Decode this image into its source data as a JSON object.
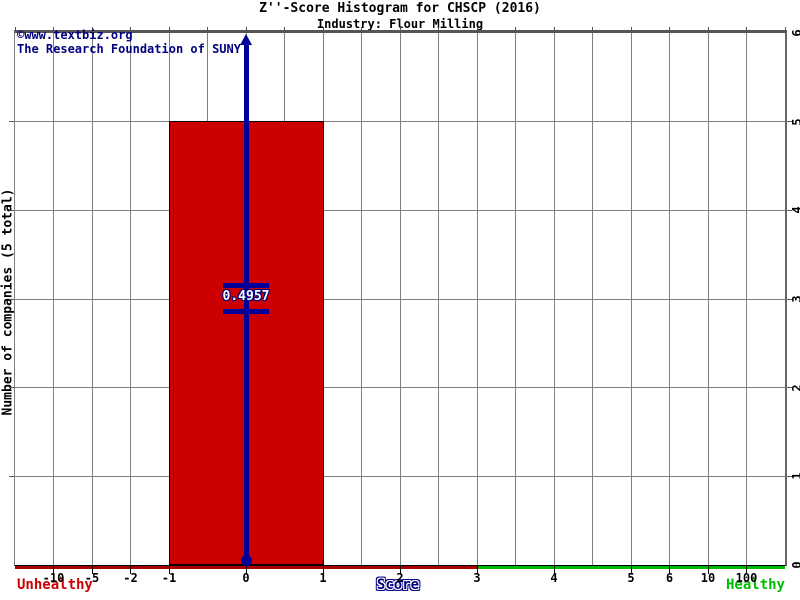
{
  "header": {
    "title": "Z''-Score Histogram for CHSCP (2016)",
    "subtitle": "Industry: Flour Milling"
  },
  "watermark": {
    "line1": "©www.textbiz.org",
    "line2": "The Research Foundation of SUNY"
  },
  "axis_labels": {
    "y": "Number of companies (5 total)",
    "x": "Score",
    "left": "Unhealthy",
    "right": "Healthy"
  },
  "colors": {
    "bar": "#cc0000",
    "bar_border": "#000000",
    "marker": "#000099",
    "navy_text": "#000080",
    "grid": "#808080",
    "tick": "#555555",
    "axis_red": "#aa0000",
    "axis_green": "#00bb00",
    "unhealthy_text": "#cc0000",
    "healthy_text": "#00bb00"
  },
  "chart_data": {
    "type": "bar",
    "title": "Z''-Score Histogram for CHSCP (2016)",
    "subtitle": "Industry: Flour Milling",
    "x_axis": {
      "label": "Score",
      "grid_divisions": 20,
      "nonlinear": true,
      "ticks": [
        {
          "label": "-10",
          "i": 1
        },
        {
          "label": "-5",
          "i": 2
        },
        {
          "label": "-2",
          "i": 3
        },
        {
          "label": "-1",
          "i": 4
        },
        {
          "label": "0",
          "i": 6
        },
        {
          "label": "1",
          "i": 8
        },
        {
          "label": "2",
          "i": 10
        },
        {
          "label": "3",
          "i": 12
        },
        {
          "label": "4",
          "i": 14
        },
        {
          "label": "5",
          "i": 16
        },
        {
          "label": "6",
          "i": 17
        },
        {
          "label": "10",
          "i": 18
        },
        {
          "label": "100",
          "i": 19
        }
      ],
      "unhealthy_until_i": 12,
      "unhealthy_until_score": 3
    },
    "y_axis": {
      "label": "Number of companies (5 total)",
      "max": 6,
      "ticks": [
        {
          "label": "0",
          "v": 0
        },
        {
          "label": "1",
          "v": 1
        },
        {
          "label": "2",
          "v": 2
        },
        {
          "label": "3",
          "v": 3
        },
        {
          "label": "4",
          "v": 4
        },
        {
          "label": "5",
          "v": 5
        },
        {
          "label": "6",
          "v": 6
        }
      ]
    },
    "bars": [
      {
        "x_from": -1,
        "x_to": 1,
        "i_from": 4,
        "i_to": 8,
        "count": 5
      }
    ],
    "marker": {
      "label": "0.4957",
      "value": 0.4957,
      "i": 6
    },
    "total_companies": 5,
    "legend": "none",
    "grid": true
  }
}
